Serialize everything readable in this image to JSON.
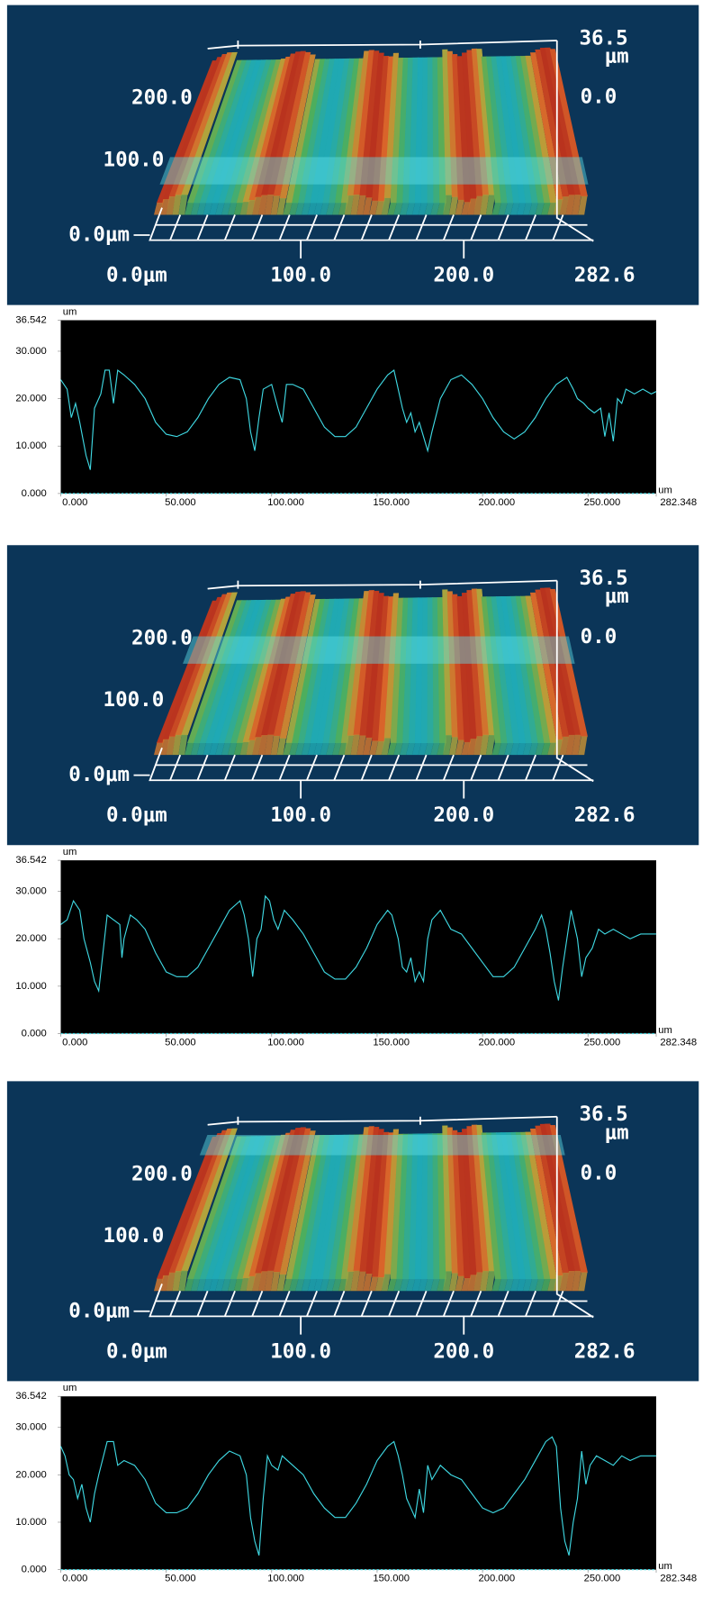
{
  "surface_views": [
    {
      "z_max": "36.5",
      "z_unit": "μm",
      "z_min": "0.0",
      "y_labels": [
        "200.0",
        "100.0",
        "0.0μm"
      ],
      "x_labels": [
        "0.0μm",
        "100.0",
        "200.0",
        "282.6"
      ]
    },
    {
      "z_max": "36.5",
      "z_unit": "μm",
      "z_min": "0.0",
      "y_labels": [
        "200.0",
        "100.0",
        "0.0μm"
      ],
      "x_labels": [
        "0.0μm",
        "100.0",
        "200.0",
        "282.6"
      ]
    },
    {
      "z_max": "36.5",
      "z_unit": "μm",
      "z_min": "0.0",
      "y_labels": [
        "200.0",
        "100.0",
        "0.0μm"
      ],
      "x_labels": [
        "0.0μm",
        "100.0",
        "200.0",
        "282.6"
      ]
    }
  ],
  "chart_data": [
    {
      "type": "line",
      "xlabel": "um",
      "ylabel": "um",
      "color": "#3fd9e3",
      "xlim": [
        0,
        282.348
      ],
      "ylim": [
        0,
        36.542
      ],
      "xticks": [
        {
          "value": 0,
          "label": "0.000"
        },
        {
          "value": 50,
          "label": "50.000"
        },
        {
          "value": 100,
          "label": "100.000"
        },
        {
          "value": 150,
          "label": "150.000"
        },
        {
          "value": 200,
          "label": "200.000"
        },
        {
          "value": 250,
          "label": "250.000"
        },
        282.348
      ],
      "yticks": [
        {
          "value": 0,
          "label": "0.000"
        },
        {
          "value": 10,
          "label": "10.000"
        },
        {
          "value": 20,
          "label": "20.000"
        },
        {
          "value": 30,
          "label": "30.000"
        },
        36.542
      ],
      "x": [
        0,
        3,
        5,
        7,
        9,
        12,
        14,
        16,
        19,
        21,
        23,
        25,
        27,
        30,
        35,
        40,
        45,
        50,
        55,
        60,
        65,
        70,
        75,
        80,
        85,
        88,
        90,
        92,
        94,
        96,
        100,
        103,
        105,
        107,
        110,
        115,
        120,
        125,
        130,
        135,
        140,
        145,
        150,
        155,
        158,
        160,
        162,
        164,
        166,
        168,
        170,
        172,
        174,
        176,
        180,
        185,
        190,
        195,
        200,
        205,
        210,
        215,
        220,
        225,
        230,
        235,
        240,
        243,
        245,
        248,
        250,
        253,
        256,
        258,
        260,
        262,
        264,
        266,
        268,
        272,
        276,
        280,
        282.348
      ],
      "values": [
        24,
        22,
        16,
        19,
        15,
        8,
        5,
        18,
        21,
        26,
        26,
        19,
        26,
        25,
        23,
        20,
        15,
        12.5,
        12,
        13,
        16,
        20,
        23,
        24.5,
        24,
        20,
        13,
        9,
        16,
        22,
        23,
        18,
        15,
        23,
        23,
        22,
        18,
        14,
        12,
        12,
        14,
        18,
        22,
        25,
        26,
        22,
        18,
        15,
        17,
        13,
        15,
        12,
        9,
        13,
        20,
        24,
        25,
        23,
        20,
        16,
        13,
        11.5,
        13,
        16,
        20,
        23,
        24.5,
        22,
        20,
        19,
        18,
        17,
        18,
        12,
        17,
        11,
        20,
        19,
        22,
        21,
        22,
        21,
        21.5
      ]
    },
    {
      "type": "line",
      "xlabel": "um",
      "ylabel": "um",
      "color": "#3fd9e3",
      "xlim": [
        0,
        282.348
      ],
      "ylim": [
        0,
        36.542
      ],
      "xticks": [
        {
          "value": 0,
          "label": "0.000"
        },
        {
          "value": 50,
          "label": "50.000"
        },
        {
          "value": 100,
          "label": "100.000"
        },
        {
          "value": 150,
          "label": "150.000"
        },
        {
          "value": 200,
          "label": "200.000"
        },
        {
          "value": 250,
          "label": "250.000"
        },
        282.348
      ],
      "yticks": [
        {
          "value": 0,
          "label": "0.000"
        },
        {
          "value": 10,
          "label": "10.000"
        },
        {
          "value": 20,
          "label": "20.000"
        },
        {
          "value": 30,
          "label": "30.000"
        },
        36.542
      ],
      "x": [
        0,
        3,
        6,
        9,
        11,
        14,
        16,
        18,
        20,
        22,
        25,
        28,
        29,
        30,
        33,
        36,
        40,
        45,
        50,
        55,
        60,
        65,
        70,
        75,
        80,
        85,
        87,
        89,
        91,
        93,
        95,
        97,
        99,
        101,
        103,
        106,
        110,
        115,
        120,
        125,
        130,
        135,
        140,
        145,
        150,
        155,
        157,
        160,
        162,
        164,
        166,
        168,
        170,
        172,
        174,
        176,
        180,
        185,
        190,
        195,
        200,
        205,
        210,
        215,
        220,
        225,
        228,
        230,
        232,
        234,
        236,
        238,
        240,
        242,
        245,
        247,
        249,
        252,
        255,
        258,
        262,
        266,
        270,
        275,
        282.348
      ],
      "values": [
        23,
        24,
        28,
        26,
        20,
        15,
        11,
        9,
        17,
        25,
        24,
        23,
        16,
        20,
        25,
        24,
        22,
        17,
        13,
        12,
        12,
        14,
        18,
        22,
        26,
        28,
        25,
        20,
        12,
        20,
        22,
        29,
        28,
        24,
        22,
        26,
        24,
        21,
        17,
        13,
        11.5,
        11.5,
        14,
        18,
        23,
        26,
        25,
        20,
        14,
        13,
        16,
        11,
        13,
        11,
        20,
        24,
        26,
        22,
        21,
        18,
        15,
        12,
        12,
        14,
        18,
        22,
        25,
        22,
        17,
        11,
        7,
        14,
        20,
        26,
        20,
        12,
        16,
        18,
        22,
        21,
        22,
        21,
        20,
        21,
        21
      ]
    },
    {
      "type": "line",
      "xlabel": "um",
      "ylabel": "um",
      "color": "#3fd9e3",
      "xlim": [
        0,
        282.348
      ],
      "ylim": [
        0,
        36.542
      ],
      "xticks": [
        {
          "value": 0,
          "label": "0.000"
        },
        {
          "value": 50,
          "label": "50.000"
        },
        {
          "value": 100,
          "label": "100.000"
        },
        {
          "value": 150,
          "label": "150.000"
        },
        {
          "value": 200,
          "label": "200.000"
        },
        {
          "value": 250,
          "label": "250.000"
        },
        282.348
      ],
      "yticks": [
        {
          "value": 0,
          "label": "0.000"
        },
        {
          "value": 10,
          "label": "10.000"
        },
        {
          "value": 20,
          "label": "20.000"
        },
        {
          "value": 30,
          "label": "30.000"
        },
        36.542
      ],
      "x": [
        0,
        2,
        4,
        6,
        8,
        10,
        12,
        14,
        16,
        18,
        22,
        25,
        27,
        30,
        35,
        40,
        45,
        50,
        55,
        60,
        65,
        70,
        75,
        80,
        85,
        88,
        90,
        92,
        94,
        96,
        98,
        100,
        103,
        105,
        110,
        115,
        120,
        125,
        130,
        135,
        140,
        145,
        150,
        155,
        158,
        160,
        162,
        164,
        166,
        168,
        170,
        172,
        174,
        176,
        180,
        185,
        190,
        195,
        200,
        205,
        210,
        215,
        220,
        225,
        230,
        233,
        235,
        237,
        239,
        241,
        243,
        245,
        247,
        249,
        251,
        254,
        258,
        262,
        266,
        270,
        275,
        282.348
      ],
      "values": [
        26,
        24,
        20,
        19,
        15,
        18,
        13,
        10,
        16,
        20,
        27,
        27,
        22,
        23,
        22,
        19,
        14,
        12,
        12,
        13,
        16,
        20,
        23,
        25,
        24,
        20,
        11,
        6,
        3,
        15,
        24,
        22,
        21,
        24,
        22,
        20,
        16,
        13,
        11,
        11,
        14,
        18,
        23,
        26,
        27,
        24,
        20,
        15,
        13,
        11,
        17,
        12,
        22,
        19,
        22,
        20,
        19,
        16,
        13,
        12,
        13,
        16,
        19,
        23,
        27,
        28,
        26,
        13,
        6,
        3,
        10,
        15,
        25,
        18,
        22,
        24,
        23,
        22,
        24,
        23,
        24,
        24
      ]
    }
  ]
}
